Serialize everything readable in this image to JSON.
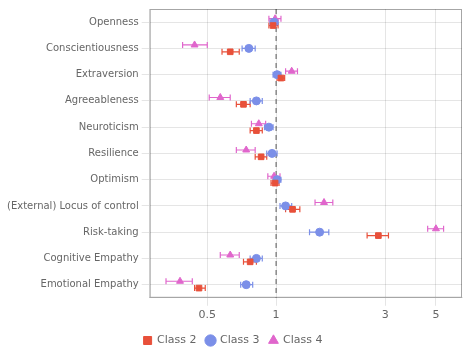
{
  "chart_data": {
    "type": "forest",
    "categories": [
      "Openness",
      "Conscientiousness",
      "Extraversion",
      "Agreeableness",
      "Neuroticism",
      "Resilience",
      "Optimism",
      "(External) Locus of control",
      "Risk-taking",
      "Cognitive Empathy",
      "Emotional Empathy"
    ],
    "series": [
      {
        "name": "Class 2",
        "color": "#e8503a",
        "marker": "square",
        "values": [
          0.97,
          0.63,
          1.05,
          0.72,
          0.82,
          0.86,
          0.99,
          1.18,
          2.8,
          0.77,
          0.46
        ],
        "ci_lo": [
          0.93,
          0.58,
          1.01,
          0.67,
          0.77,
          0.81,
          0.95,
          1.1,
          2.5,
          0.72,
          0.44
        ],
        "ci_hi": [
          1.02,
          0.69,
          1.09,
          0.77,
          0.87,
          0.91,
          1.03,
          1.27,
          3.1,
          0.82,
          0.49
        ]
      },
      {
        "name": "Class 3",
        "color": "#7b8fe8",
        "marker": "circle",
        "values": [
          0.98,
          0.76,
          1.01,
          0.82,
          0.93,
          0.96,
          1.01,
          1.1,
          1.55,
          0.82,
          0.74
        ],
        "ci_lo": [
          0.94,
          0.71,
          0.97,
          0.77,
          0.89,
          0.91,
          0.97,
          1.04,
          1.4,
          0.77,
          0.7
        ],
        "ci_hi": [
          1.02,
          0.81,
          1.05,
          0.87,
          0.97,
          1.01,
          1.05,
          1.17,
          1.7,
          0.87,
          0.79
        ]
      },
      {
        "name": "Class 4",
        "color": "#e066cc",
        "marker": "triangle",
        "values": [
          0.99,
          0.44,
          1.17,
          0.57,
          0.84,
          0.74,
          0.98,
          1.62,
          5.0,
          0.63,
          0.38
        ],
        "ci_lo": [
          0.93,
          0.39,
          1.1,
          0.51,
          0.78,
          0.67,
          0.92,
          1.48,
          4.6,
          0.57,
          0.33
        ],
        "ci_hi": [
          1.05,
          0.5,
          1.24,
          0.63,
          0.9,
          0.81,
          1.04,
          1.77,
          5.4,
          0.69,
          0.43
        ]
      }
    ],
    "ref_line": 1,
    "xlim": [
      0.28,
      6.5
    ],
    "xticks": [
      0.5,
      1,
      3,
      5
    ],
    "log": "x",
    "grid": true,
    "legend": "bottom"
  }
}
